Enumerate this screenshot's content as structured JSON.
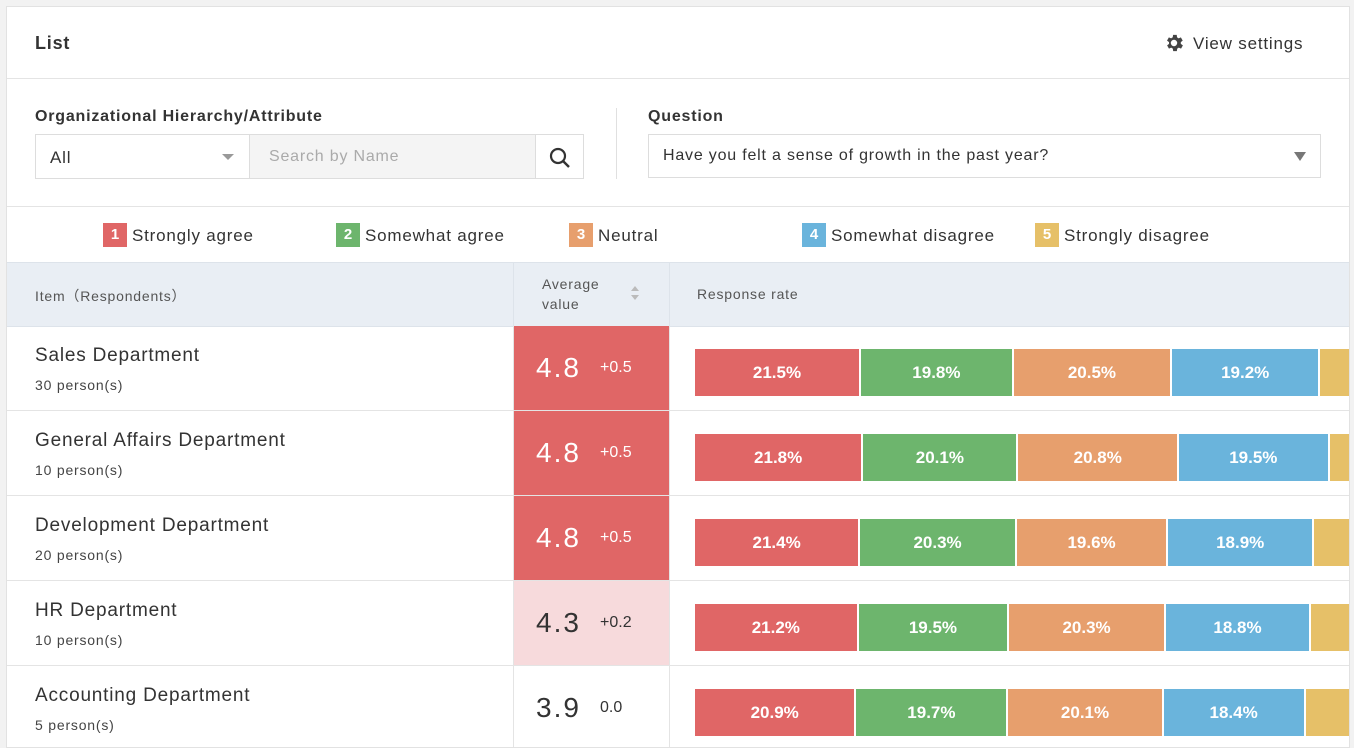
{
  "header": {
    "title": "List",
    "settings": "View settings"
  },
  "filters": {
    "hierarchy_label": "Organizational Hierarchy/Attribute",
    "hierarchy_value": "All",
    "search_placeholder": "Search by Name",
    "question_label": "Question",
    "question_value": "Have you felt a sense of growth in the past year?"
  },
  "legend": [
    {
      "num": 1,
      "label": "Strongly agree",
      "color": "#e06666"
    },
    {
      "num": 2,
      "label": "Somewhat agree",
      "color": "#6db56d"
    },
    {
      "num": 3,
      "label": "Neutral",
      "color": "#e79f6d"
    },
    {
      "num": 4,
      "label": "Somewhat disagree",
      "color": "#6ab4dc"
    },
    {
      "num": 5,
      "label": "Strongly disagree",
      "color": "#e6c068"
    }
  ],
  "table": {
    "columns": [
      "Item（Respondents）",
      "Average value",
      "Response rate"
    ],
    "rows": [
      {
        "name": "Sales Department",
        "respondents": "30 person(s)",
        "average": 4.8,
        "change": "+0.5",
        "highlight": "#e06666",
        "text_color": "#ffffff",
        "rates": [
          21.5,
          19.8,
          20.5,
          19.2
        ],
        "rate_labels": [
          "21.5%",
          "19.8%",
          "20.5%",
          "19.2%"
        ]
      },
      {
        "name": "General Affairs Department",
        "respondents": "10 person(s)",
        "average": 4.8,
        "change": "+0.5",
        "highlight": "#e06666",
        "text_color": "#ffffff",
        "rates": [
          21.8,
          20.1,
          20.8,
          19.5
        ],
        "rate_labels": [
          "21.8%",
          "20.1%",
          "20.8%",
          "19.5%"
        ]
      },
      {
        "name": "Development Department",
        "respondents": "20 person(s)",
        "average": 4.8,
        "change": "+0.5",
        "highlight": "#e06666",
        "text_color": "#ffffff",
        "rates": [
          21.4,
          20.3,
          19.6,
          18.9
        ],
        "rate_labels": [
          "21.4%",
          "20.3%",
          "19.6%",
          "18.9%"
        ]
      },
      {
        "name": "HR Department",
        "respondents": "10 person(s)",
        "average": 4.3,
        "change": "+0.2",
        "highlight": "#f7dadc",
        "text_color": "#333333",
        "rates": [
          21.2,
          19.5,
          20.3,
          18.8
        ],
        "rate_labels": [
          "21.2%",
          "19.5%",
          "20.3%",
          "18.8%"
        ]
      },
      {
        "name": "Accounting Department",
        "respondents": "5 person(s)",
        "average": 3.9,
        "change": "0.0",
        "highlight": "#ffffff",
        "text_color": "#333333",
        "rates": [
          20.9,
          19.7,
          20.1,
          18.4
        ],
        "rate_labels": [
          "20.9%",
          "19.7%",
          "20.1%",
          "18.4%"
        ]
      }
    ]
  }
}
